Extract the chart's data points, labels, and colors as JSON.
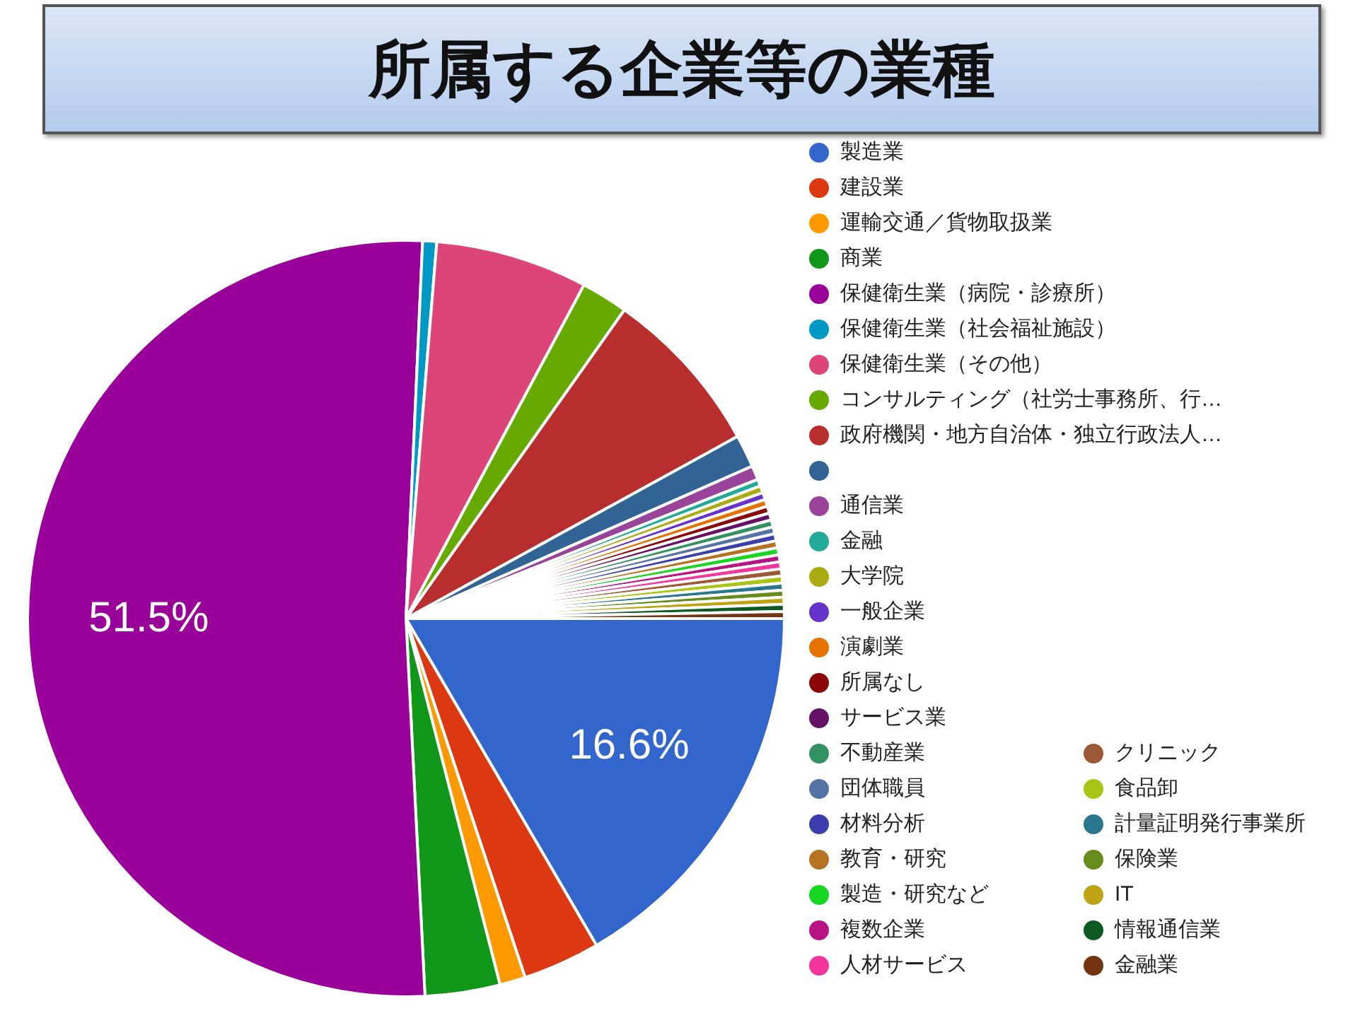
{
  "chart_data": {
    "type": "pie",
    "title": "所属する企業等の業種",
    "legend": "right",
    "categories": [
      "製造業",
      "建設業",
      "運輸交通／貨物取扱業",
      "商業",
      "保健衛生業（病院・診療所）",
      "保健衛生業（社会福祉施設）",
      "保健衛生業（その他）",
      "コンサルティング（社労士事務所、行…",
      "政府機関・地方自治体・独立行政法人…",
      null,
      "通信業",
      "金融",
      "大学院",
      "一般企業",
      "演劇業",
      "所属なし",
      "サービス業",
      "不動産業",
      "団体職員",
      "材料分析",
      "教育・研究",
      "製造・研究など",
      "複数企業",
      "人材サービス",
      "クリニック",
      "食品卸",
      "計量証明発行事業所",
      "保険業",
      "IT",
      "情報通信業",
      "金融業"
    ],
    "values": [
      16.6,
      3.3,
      1.1,
      3.2,
      51.5,
      0.6,
      6.5,
      2.0,
      7.2,
      1.4,
      0.6,
      0.3,
      0.3,
      0.3,
      0.3,
      0.3,
      0.3,
      0.3,
      0.3,
      0.3,
      0.3,
      0.3,
      0.3,
      0.3,
      0.3,
      0.3,
      0.3,
      0.3,
      0.3,
      0.3,
      0.3
    ],
    "value_labels": [
      "16.6%",
      null,
      null,
      null,
      "51.5%",
      null,
      null,
      null,
      null,
      null,
      null,
      null,
      null,
      null,
      null,
      null,
      null,
      null,
      null,
      null,
      null,
      null,
      null,
      null,
      null,
      null,
      null,
      null,
      null,
      null,
      null
    ],
    "colors": [
      "#3366cc",
      "#dc3912",
      "#ff9900",
      "#109618",
      "#990099",
      "#0099c6",
      "#dd4477",
      "#66aa00",
      "#b82e2e",
      "#316395",
      "#994499",
      "#22aa99",
      "#aaaa11",
      "#6633cc",
      "#e67300",
      "#8b0707",
      "#651067",
      "#329262",
      "#5574a6",
      "#3b3eac",
      "#b77322",
      "#16d620",
      "#b91383",
      "#f4359e",
      "#9c5935",
      "#a9c413",
      "#2a778d",
      "#668d1c",
      "#bea413",
      "#0c5922",
      "#743411"
    ]
  }
}
